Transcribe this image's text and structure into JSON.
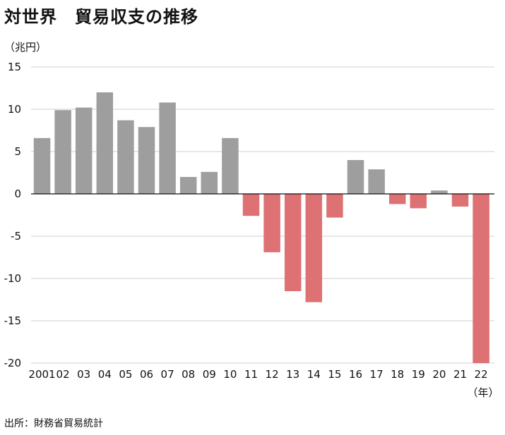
{
  "header": {
    "title": "対世界　貿易収支の推移",
    "unit": "（兆円）",
    "source": "出所：財務省貿易統計",
    "year_unit": "（年）"
  },
  "colors": {
    "positive": "#9e9e9e",
    "negative": "#dd7173",
    "grid": "#cfcfcf",
    "zero_line": "#111111"
  },
  "chart_data": {
    "type": "bar",
    "title": "対世界　貿易収支の推移",
    "ylabel": "（兆円）",
    "xlabel": "（年）",
    "ylim": [
      -20,
      15
    ],
    "yticks": [
      15,
      10,
      5,
      0,
      -5,
      -10,
      -15,
      -20
    ],
    "grid": true,
    "categories": [
      "2001",
      "02",
      "03",
      "04",
      "05",
      "06",
      "07",
      "08",
      "09",
      "10",
      "11",
      "12",
      "13",
      "14",
      "15",
      "16",
      "17",
      "18",
      "19",
      "20",
      "21",
      "22"
    ],
    "values": [
      6.6,
      9.9,
      10.2,
      12.0,
      8.7,
      7.9,
      10.8,
      2.0,
      2.6,
      6.6,
      -2.6,
      -6.9,
      -11.5,
      -12.8,
      -2.8,
      4.0,
      2.9,
      -1.2,
      -1.7,
      0.4,
      -1.5,
      -20.0
    ]
  }
}
